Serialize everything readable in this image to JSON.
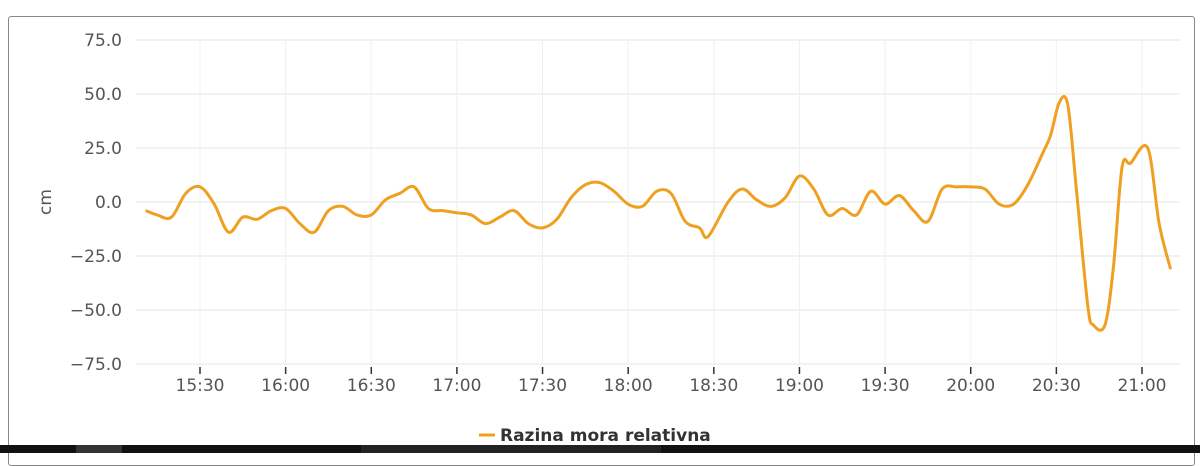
{
  "chart_data": {
    "type": "line",
    "ylabel": "cm",
    "xlabel": "",
    "ylim": [
      -75,
      75
    ],
    "yticks": [
      "75.0",
      "50.0",
      "25.0",
      "0.0",
      "−25.0",
      "−50.0",
      "−75.0"
    ],
    "ytick_values": [
      75,
      50,
      25,
      0,
      -25,
      -50,
      -75
    ],
    "xticks": [
      "15:30",
      "16:00",
      "16:30",
      "17:00",
      "17:30",
      "18:00",
      "18:30",
      "19:00",
      "19:30",
      "20:00",
      "20:30",
      "21:00"
    ],
    "grid": true,
    "legend_position": "bottom",
    "series": [
      {
        "name": "Razina mora relativna",
        "color": "#f0a020",
        "x": [
          "15:11",
          "15:15",
          "15:20",
          "15:25",
          "15:30",
          "15:35",
          "15:40",
          "15:45",
          "15:50",
          "15:55",
          "16:00",
          "16:05",
          "16:10",
          "16:15",
          "16:20",
          "16:25",
          "16:30",
          "16:35",
          "16:40",
          "16:45",
          "16:50",
          "16:55",
          "17:00",
          "17:05",
          "17:10",
          "17:15",
          "17:20",
          "17:25",
          "17:30",
          "17:35",
          "17:40",
          "17:45",
          "17:50",
          "17:55",
          "18:00",
          "18:05",
          "18:10",
          "18:15",
          "18:20",
          "18:25",
          "18:28",
          "18:35",
          "18:40",
          "18:45",
          "18:50",
          "18:55",
          "19:00",
          "19:05",
          "19:10",
          "19:15",
          "19:20",
          "19:25",
          "19:30",
          "19:35",
          "19:40",
          "19:45",
          "19:50",
          "19:55",
          "20:00",
          "20:05",
          "20:10",
          "20:15",
          "20:20",
          "20:25",
          "20:28",
          "20:31",
          "20:34",
          "20:37",
          "20:41",
          "20:43",
          "20:47",
          "20:50",
          "20:53",
          "20:56",
          "21:02",
          "21:06",
          "21:10"
        ],
        "y": [
          -4,
          -6,
          -7,
          4,
          7,
          -1,
          -14,
          -7,
          -8,
          -4,
          -3,
          -10,
          -14,
          -4,
          -2,
          -6,
          -6,
          1,
          4,
          7,
          -3,
          -4,
          -5,
          -6,
          -10,
          -7,
          -4,
          -10,
          -12,
          -8,
          2,
          8,
          9,
          5,
          -1,
          -2,
          5,
          4,
          -9,
          -12,
          -16,
          0,
          6,
          1,
          -2,
          2,
          12,
          6,
          -6,
          -3,
          -6,
          5,
          -1,
          3,
          -4,
          -9,
          6,
          7,
          7,
          6,
          -1,
          -1,
          8,
          22,
          31,
          46,
          45,
          6,
          -48,
          -57,
          -57,
          -30,
          16,
          18,
          25,
          -10,
          -31
        ]
      }
    ]
  }
}
